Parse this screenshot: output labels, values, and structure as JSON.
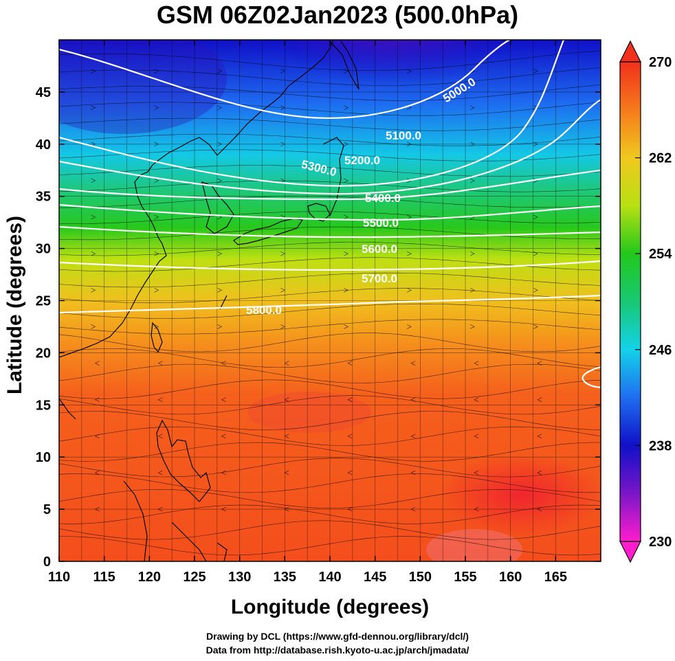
{
  "title": "GSM 06Z02Jan2023 (500.0hPa)",
  "x_axis": {
    "label": "Longitude (degrees)",
    "range": [
      110,
      170
    ],
    "ticks": [
      "110",
      "115",
      "120",
      "125",
      "130",
      "135",
      "140",
      "145",
      "150",
      "155",
      "160",
      "165"
    ]
  },
  "y_axis": {
    "label": "Latitude  (degrees)",
    "range": [
      0,
      50
    ],
    "ticks": [
      "0",
      "5",
      "10",
      "15",
      "20",
      "25",
      "30",
      "35",
      "40",
      "45"
    ]
  },
  "colorbar": {
    "range": [
      230,
      270
    ],
    "labels": [
      "230",
      "238",
      "246",
      "254",
      "262",
      "270"
    ],
    "colors": [
      "#ff1dcd",
      "#7a16c8",
      "#1010c8",
      "#1f6ef0",
      "#13d2ea",
      "#18c872",
      "#22c81c",
      "#b8e012",
      "#f0c81e",
      "#f57a1c",
      "#f2301c"
    ]
  },
  "contours": [
    {
      "label": "5000.0"
    },
    {
      "label": "5100.0"
    },
    {
      "label": "5200.0"
    },
    {
      "label": "5300.0"
    },
    {
      "label": "5400.0"
    },
    {
      "label": "5500.0"
    },
    {
      "label": "5600.0"
    },
    {
      "label": "5700.0"
    },
    {
      "label": "5800.0"
    }
  ],
  "credits": [
    "Drawing by DCL (https://www.gfd-dennou.org/library/dcl/)",
    "Data from http://database.rish.kyoto-u.ac.jp/arch/jmadata/"
  ]
}
